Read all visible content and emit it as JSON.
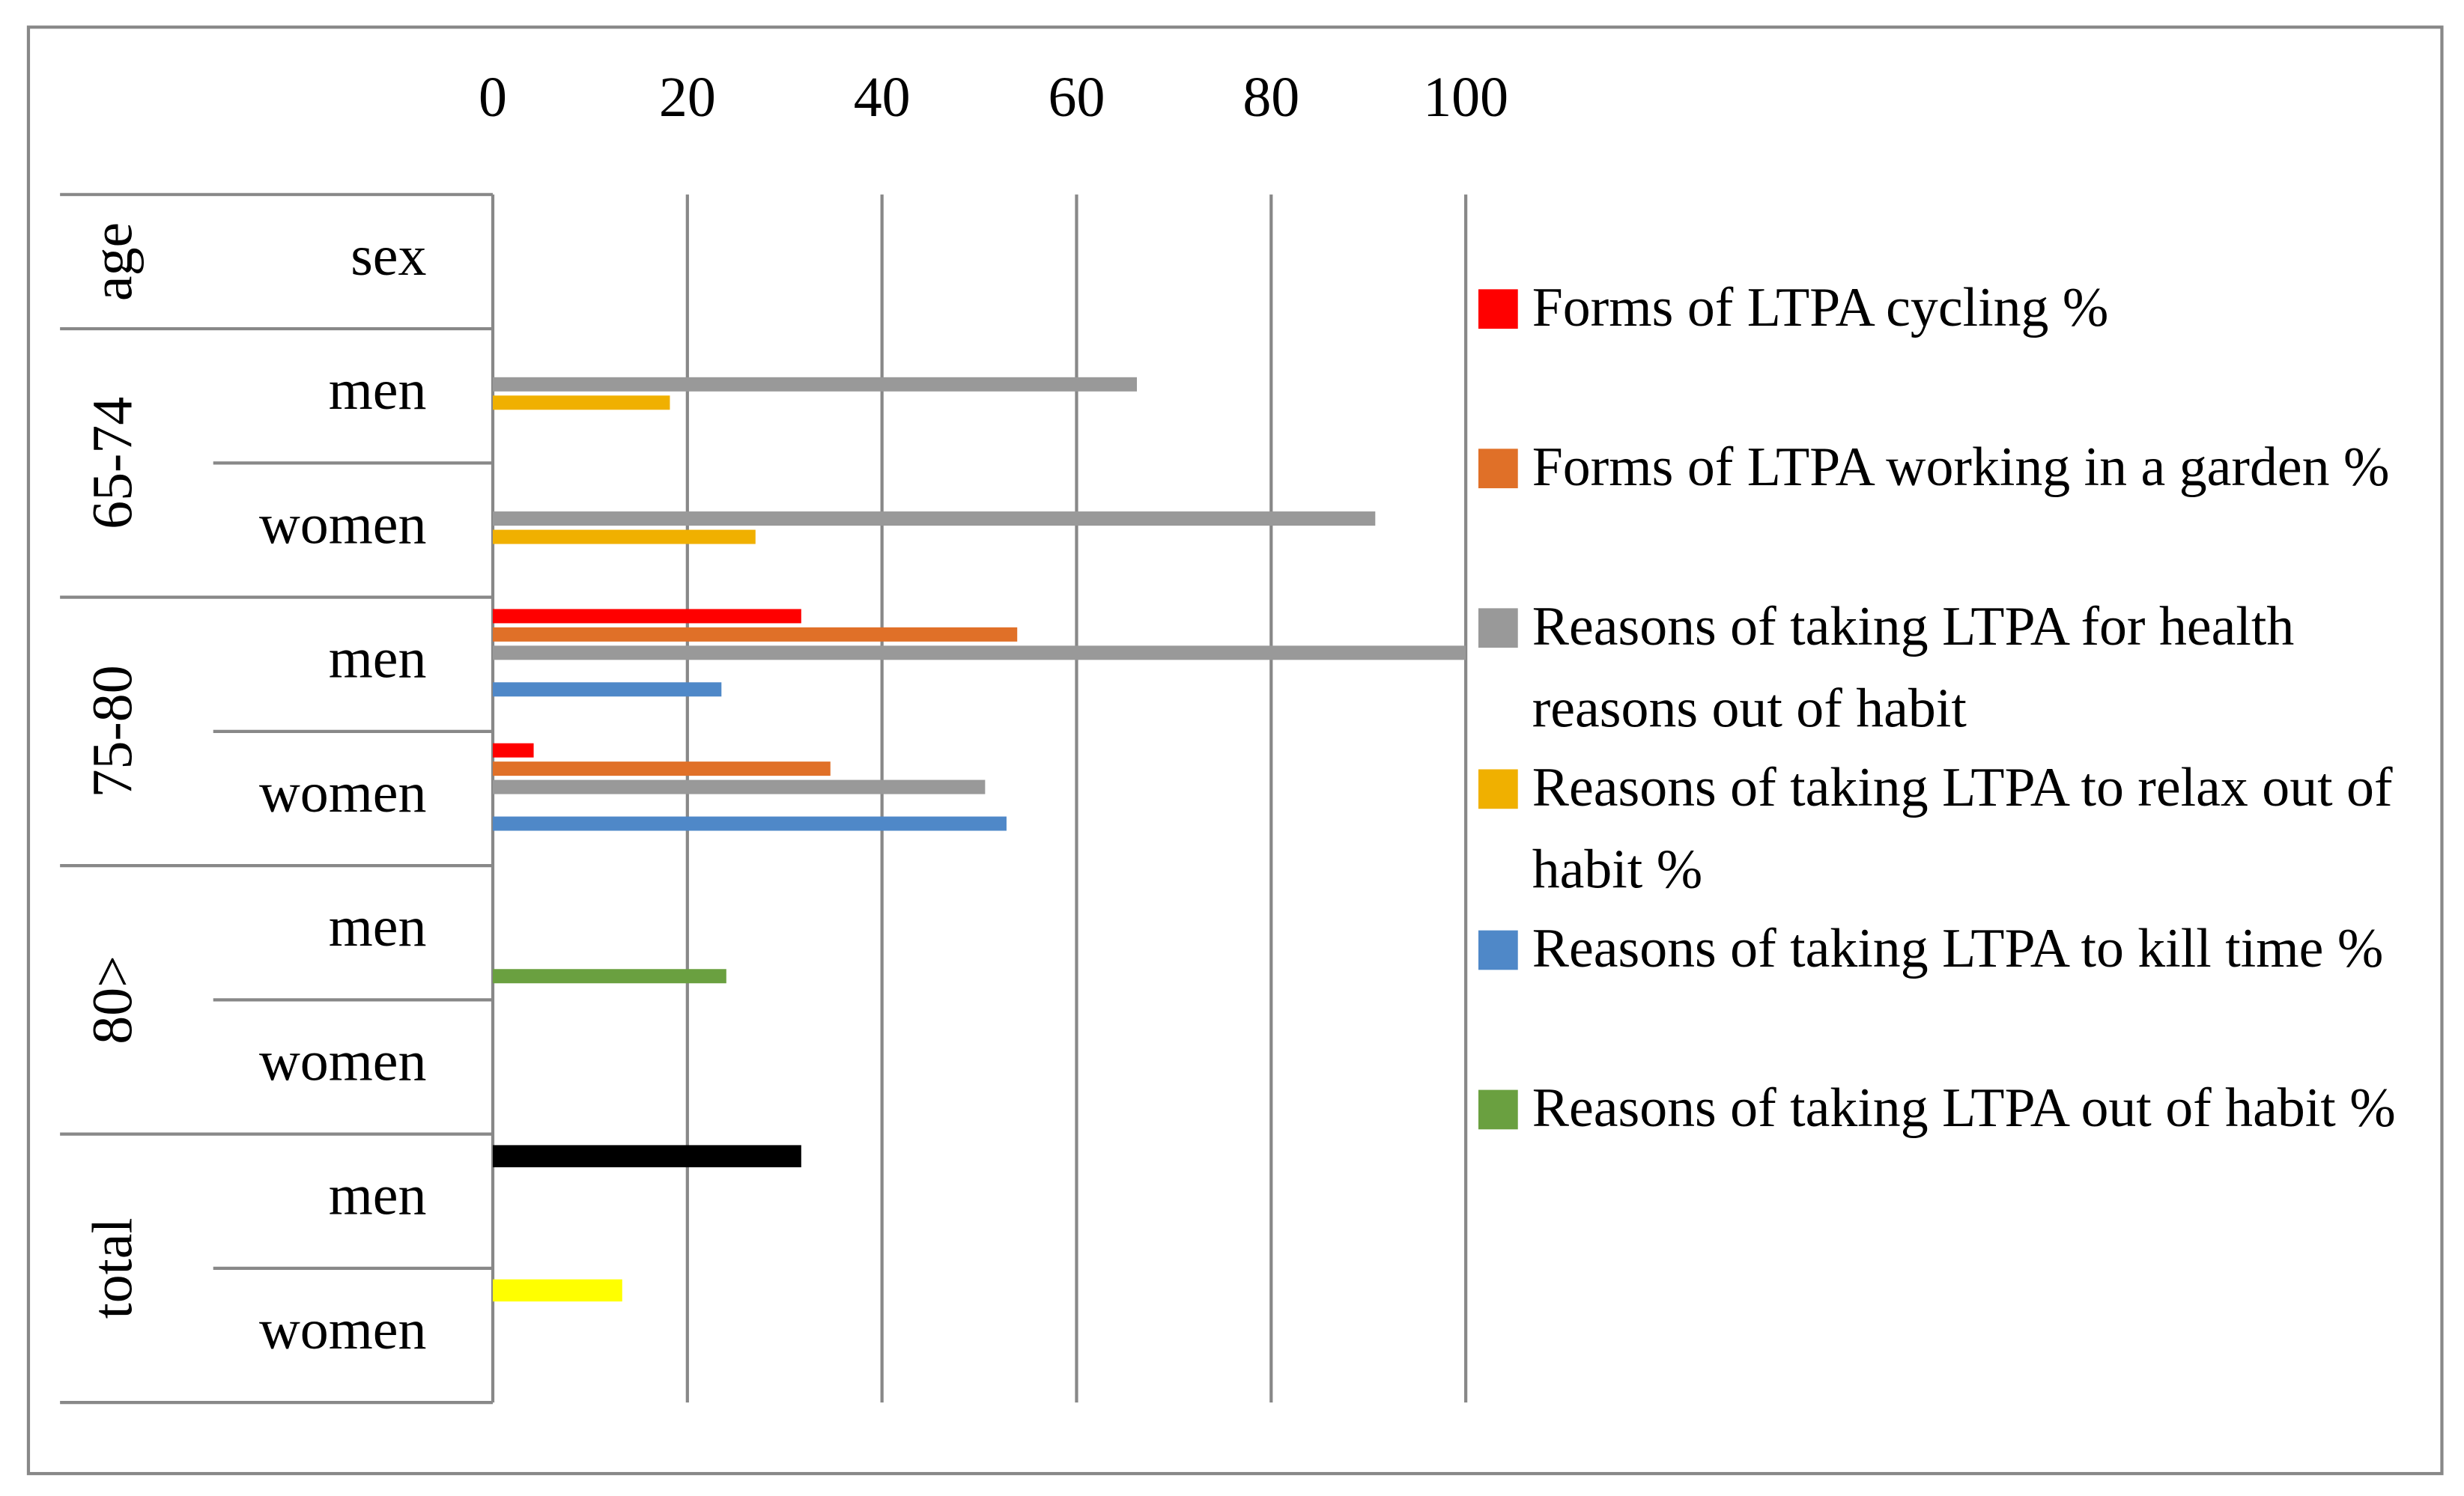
{
  "chart_data": {
    "type": "bar",
    "orientation": "horizontal",
    "row_header": {
      "group": "age",
      "category": "sex"
    },
    "groups": [
      {
        "label": "65-74",
        "categories": [
          "men",
          "women"
        ]
      },
      {
        "label": "75-80",
        "categories": [
          "men",
          "women"
        ]
      },
      {
        "label": "80>",
        "categories": [
          "men",
          "women"
        ]
      },
      {
        "label": "total",
        "categories": [
          "men",
          "women"
        ]
      }
    ],
    "xlim": [
      0,
      100
    ],
    "xticks": [
      0,
      20,
      40,
      60,
      80,
      100
    ],
    "grid": true,
    "series": [
      {
        "name": "Forms of LTPA cycling %",
        "color": "#ff0000",
        "values": [
          null,
          null,
          31.7,
          4.2,
          null,
          null,
          null,
          null
        ]
      },
      {
        "name": "Forms of LTPA working in a garden %",
        "color": "#e07028",
        "values": [
          null,
          null,
          53.9,
          34.7,
          null,
          null,
          null,
          null
        ]
      },
      {
        "name": "Reasons of taking LTPA for health reasons out of habit",
        "color": "#999999",
        "values": [
          66.2,
          90.7,
          100,
          50.6,
          null,
          null,
          null,
          null
        ]
      },
      {
        "name": "Reasons of taking LTPA to relax out of habit %",
        "color": "#f0b000",
        "values": [
          18.2,
          27,
          null,
          null,
          null,
          null,
          null,
          null
        ]
      },
      {
        "name": "Reasons of taking LTPA to kill time %",
        "color": "#4f88c8",
        "values": [
          null,
          null,
          23.5,
          52.8,
          null,
          null,
          null,
          null
        ]
      },
      {
        "name": "Reasons of taking LTPA out of habit %",
        "color": "#6aa040",
        "values": [
          null,
          null,
          null,
          null,
          24,
          null,
          null,
          null
        ]
      },
      {
        "color": "#000000",
        "values": [
          null,
          null,
          null,
          null,
          null,
          null,
          31.7,
          null
        ]
      },
      {
        "color": "#ffff00",
        "values": [
          null,
          null,
          null,
          null,
          null,
          null,
          null,
          13.3
        ]
      }
    ]
  }
}
